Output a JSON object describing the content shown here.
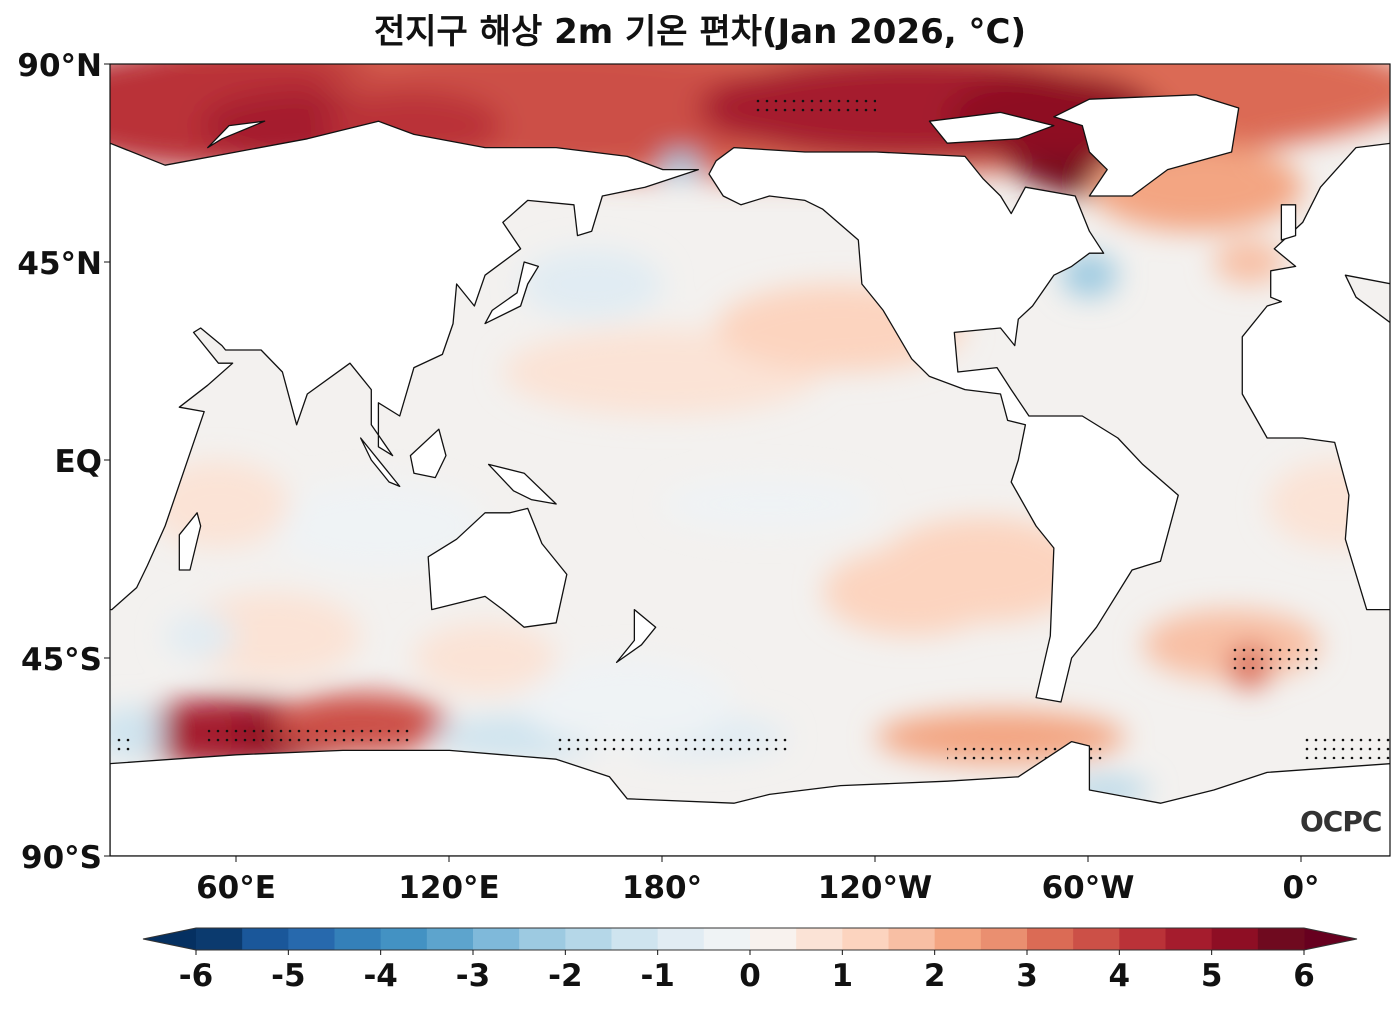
{
  "title": "전지구 해상 2m 기온 편차(Jan 2026, °C)",
  "lat_ticks": [
    "90°N",
    "45°N",
    "EQ",
    "45°S",
    "90°S"
  ],
  "lon_ticks": [
    "60°E",
    "120°E",
    "180°",
    "120°W",
    "60°W",
    "0°"
  ],
  "logo": "OCPC",
  "colorbar": {
    "range": [
      -6,
      6
    ],
    "step": 0.5,
    "tick_labels": [
      "-6",
      "-5",
      "-4",
      "-3",
      "-2",
      "-1",
      "0",
      "1",
      "2",
      "3",
      "4",
      "5",
      "6"
    ],
    "colors": [
      "#0b3a6e",
      "#1a579a",
      "#2769ad",
      "#3480b9",
      "#4392c3",
      "#5da4cd",
      "#7fb9da",
      "#9dcae1",
      "#b5d7e8",
      "#cfe4ef",
      "#e1ecf3",
      "#eff3f5",
      "#f8f2ee",
      "#fbe3d6",
      "#fcd4bf",
      "#f8bfa4",
      "#f3a582",
      "#ea8f70",
      "#db6b55",
      "#cc5047",
      "#ba3238",
      "#a51c2d",
      "#8e0e24",
      "#6f0a1f"
    ],
    "under_color": "#053061",
    "over_color": "#67001f"
  }
}
